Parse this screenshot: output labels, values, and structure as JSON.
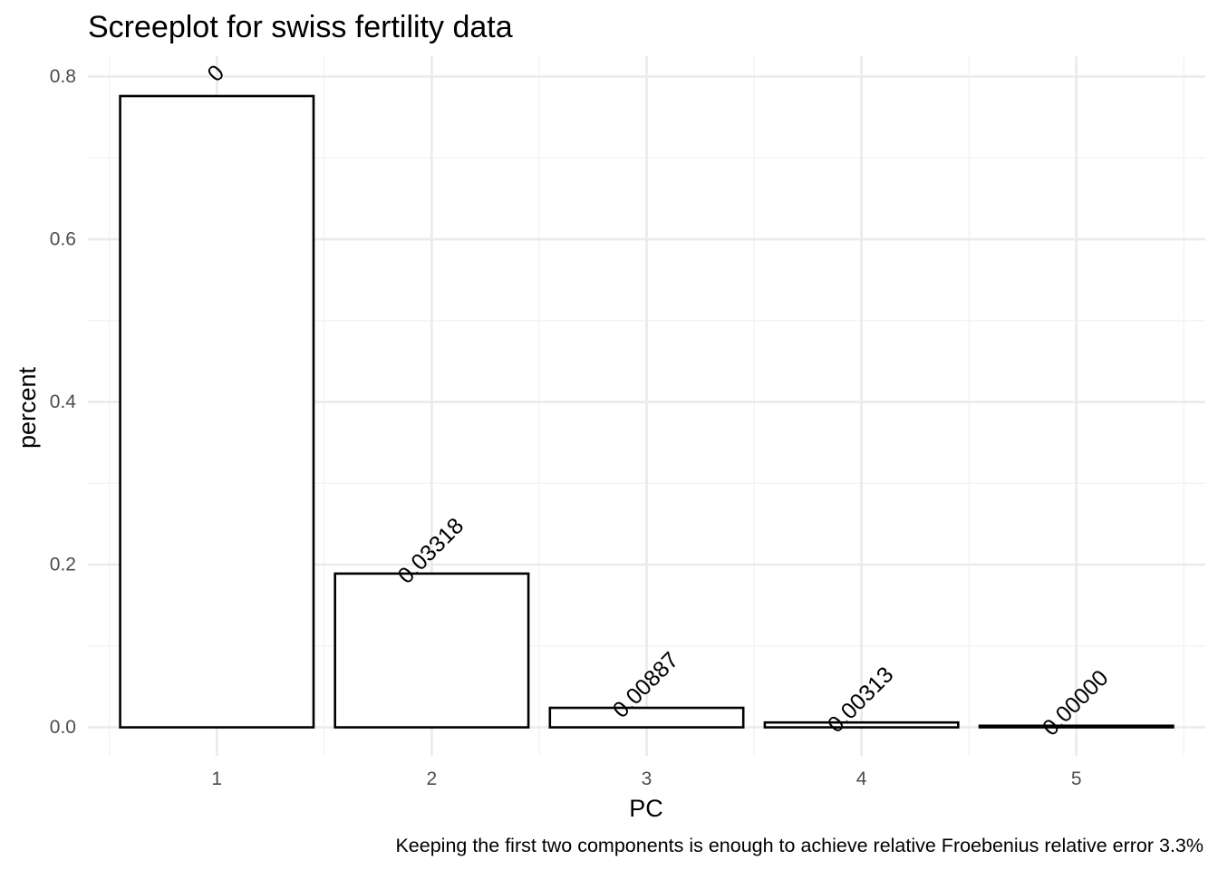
{
  "chart_data": {
    "type": "bar",
    "title": "Screeplot for swiss fertility data",
    "xlabel": "PC",
    "ylabel": "percent",
    "caption": "Keeping the first two components is enough to achieve relative Froebenius relative error 3.3%",
    "categories": [
      "1",
      "2",
      "3",
      "4",
      "5"
    ],
    "values": [
      0.776,
      0.189,
      0.024,
      0.006,
      0.002
    ],
    "data_labels": [
      "0",
      "0.03318",
      "0.00887",
      "0.00313",
      "0.00000"
    ],
    "ylim": [
      -0.035,
      0.825
    ],
    "yticks": [
      0.0,
      0.2,
      0.4,
      0.6,
      0.8
    ],
    "ytick_labels": [
      "0.0",
      "0.2",
      "0.4",
      "0.6",
      "0.8"
    ],
    "grid": true,
    "colors": {
      "bar_fill": "#ffffff",
      "bar_stroke": "#000000",
      "grid": "#ebebeb"
    }
  }
}
